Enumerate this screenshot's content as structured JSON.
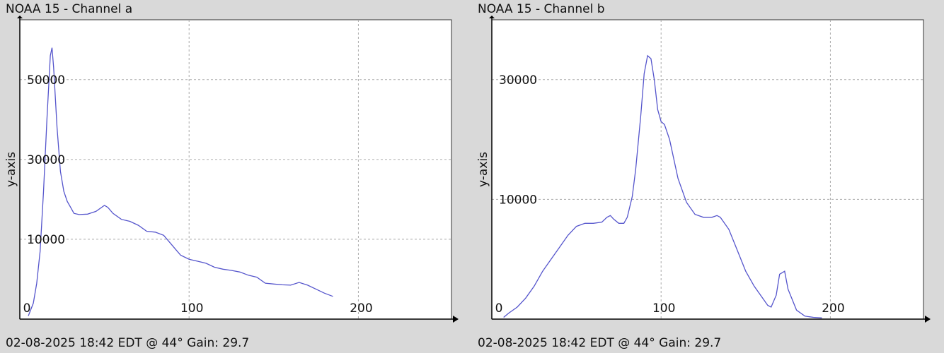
{
  "colors": {
    "line": "#5555cc",
    "grid": "#aaaaaa",
    "plot_bg": "#ffffff",
    "page_bg": "#d9d9d9"
  },
  "chart_data": [
    {
      "type": "line",
      "title": "NOAA 15 - Channel a",
      "ylabel": "y-axis",
      "xlabel": "",
      "footer": "02-08-2025 18:42 EDT @ 44° Gain: 29.7",
      "xlim": [
        0,
        255
      ],
      "ylim": [
        -10000,
        65000
      ],
      "xticks": [
        0,
        100,
        200
      ],
      "xtick_labels": [
        "0",
        "100",
        "200"
      ],
      "yticks": [
        10000,
        30000,
        50000
      ],
      "ytick_labels": [
        "10000",
        "30000",
        "50000"
      ],
      "grid": true,
      "series": [
        {
          "x": [
            5,
            8,
            10,
            12,
            14,
            16,
            18,
            19,
            20,
            22,
            24,
            26,
            28,
            30,
            32,
            35,
            40,
            45,
            50,
            52,
            55,
            60,
            65,
            70,
            75,
            80,
            85,
            90,
            93,
            95,
            100,
            105,
            110,
            115,
            120,
            125,
            130,
            135,
            140,
            145,
            150,
            155,
            160,
            165,
            170,
            175,
            180,
            185
          ],
          "values": [
            -9200,
            -6000,
            -1000,
            7000,
            22000,
            40000,
            56000,
            58000,
            53000,
            38000,
            27000,
            22000,
            19500,
            18000,
            16500,
            16200,
            16300,
            17000,
            18500,
            18000,
            16500,
            15000,
            14500,
            13500,
            12000,
            11800,
            11000,
            8500,
            7000,
            6000,
            5000,
            4500,
            4000,
            3000,
            2500,
            2200,
            1800,
            1000,
            500,
            -1000,
            -1200,
            -1400,
            -1500,
            -800,
            -1500,
            -2500,
            -3500,
            -4300
          ]
        }
      ]
    },
    {
      "type": "line",
      "title": "NOAA 15 - Channel b",
      "ylabel": "y-axis",
      "xlabel": "",
      "footer": "02-08-2025 18:42 EDT @ 44° Gain: 29.7",
      "xlim": [
        0,
        255
      ],
      "ylim": [
        -10000,
        40000
      ],
      "xticks": [
        0,
        100,
        200
      ],
      "xtick_labels": [
        "0",
        "100",
        "200"
      ],
      "yticks": [
        10000,
        30000
      ],
      "ytick_labels": [
        "10000",
        "30000"
      ],
      "grid": true,
      "series": [
        {
          "x": [
            7,
            10,
            15,
            20,
            25,
            30,
            35,
            40,
            45,
            50,
            55,
            60,
            65,
            68,
            70,
            72,
            75,
            78,
            80,
            83,
            85,
            88,
            90,
            92,
            94,
            96,
            98,
            100,
            102,
            105,
            110,
            115,
            120,
            125,
            130,
            133,
            135,
            140,
            145,
            150,
            155,
            160,
            163,
            165,
            168,
            170,
            173,
            175,
            180,
            185,
            190,
            195
          ],
          "values": [
            -9700,
            -9000,
            -8000,
            -6500,
            -4500,
            -2000,
            0,
            2000,
            4000,
            5500,
            6000,
            6000,
            6200,
            7000,
            7300,
            6700,
            6000,
            6000,
            7000,
            10500,
            15000,
            24000,
            31000,
            34000,
            33500,
            30000,
            25000,
            23000,
            22500,
            20000,
            13500,
            9500,
            7500,
            7000,
            7000,
            7300,
            7000,
            5000,
            1500,
            -2000,
            -4500,
            -6500,
            -7700,
            -8000,
            -6000,
            -2500,
            -2000,
            -5000,
            -8500,
            -9500,
            -9700,
            -9800
          ]
        }
      ]
    }
  ]
}
